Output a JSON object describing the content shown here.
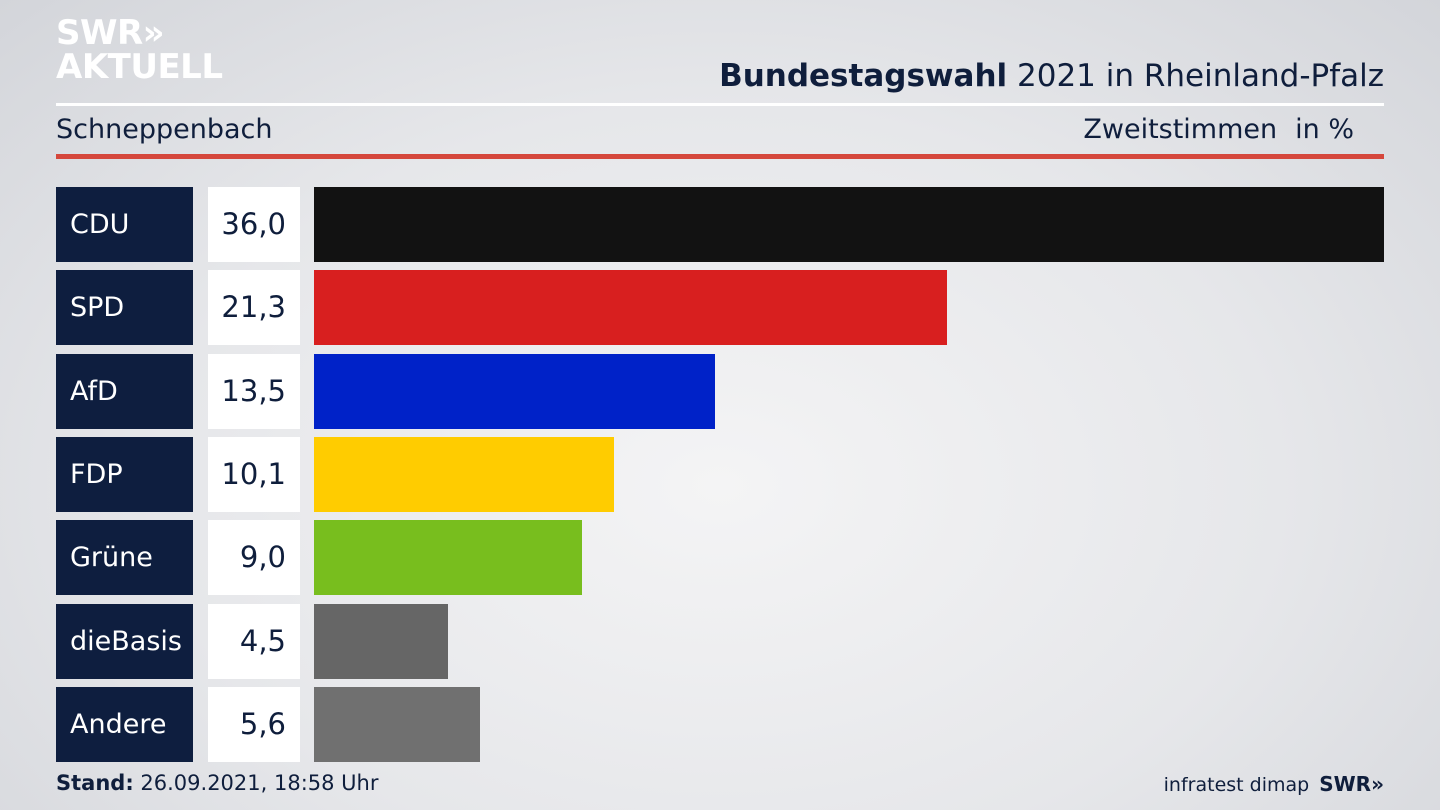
{
  "brand": {
    "line1": "SWR»",
    "line2": "AKTUELL"
  },
  "header": {
    "title_bold": "Bundestagswahl",
    "title_rest": " 2021 in Rheinland-Pfalz",
    "location": "Schneppenbach",
    "measure": "Zweitstimmen",
    "unit": "in %"
  },
  "chart_data": {
    "type": "bar",
    "orientation": "horizontal",
    "categories": [
      "CDU",
      "SPD",
      "AfD",
      "FDP",
      "Grüne",
      "dieBasis",
      "Andere"
    ],
    "values": [
      36.0,
      21.3,
      13.5,
      10.1,
      9.0,
      4.5,
      5.6
    ],
    "value_labels": [
      "36,0",
      "21,3",
      "13,5",
      "10,1",
      "9,0",
      "4,5",
      "5,6"
    ],
    "colors": [
      "#121212",
      "#d81f1f",
      "#0022c8",
      "#ffcc00",
      "#78be1e",
      "#666666",
      "#707070"
    ],
    "xlim": [
      0,
      36.0
    ],
    "grid": false,
    "legend": "none"
  },
  "footer": {
    "stand_label": "Stand:",
    "stand_value": " 26.09.2021, 18:58 Uhr",
    "source": "infratest dimap",
    "brand": "SWR»"
  }
}
